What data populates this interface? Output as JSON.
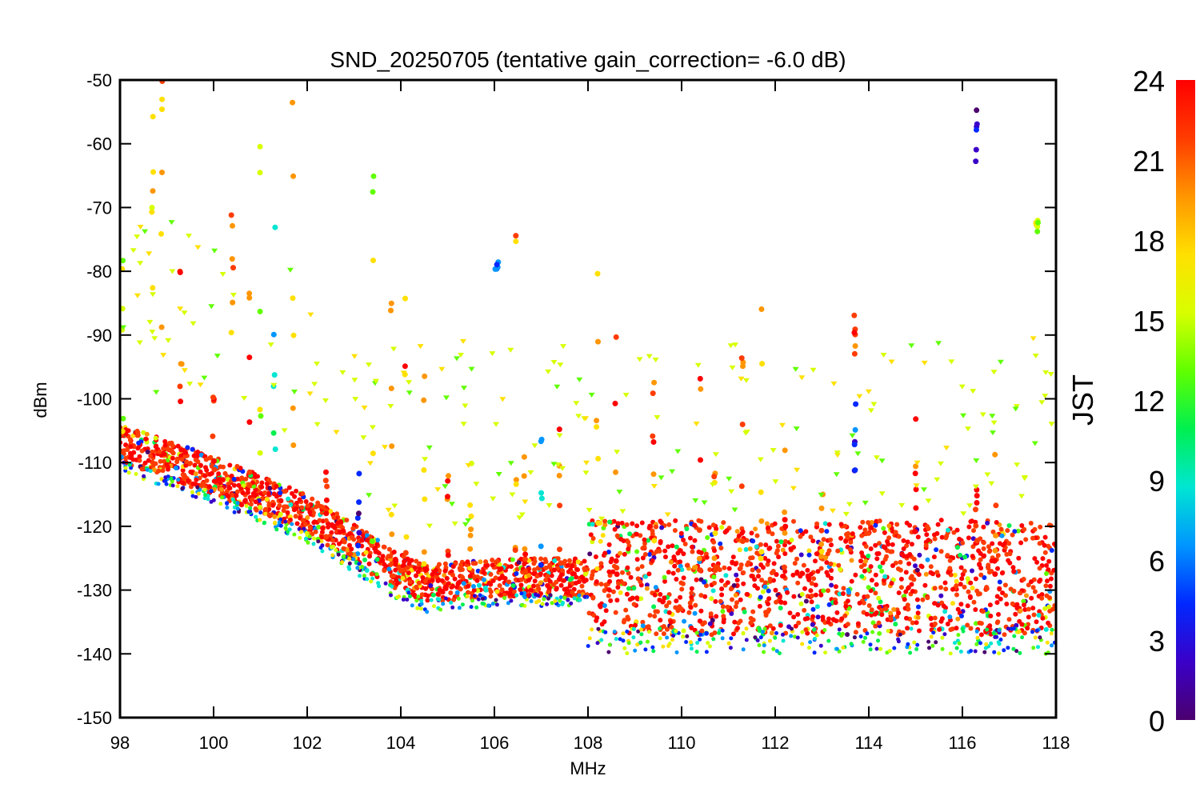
{
  "chart_data": {
    "type": "scatter",
    "title": "SND_20250705 (tentative gain_correction= -6.0 dB)",
    "xlabel": "MHz",
    "ylabel": "dBm",
    "xlim": [
      98,
      118
    ],
    "ylim": [
      -150,
      -50
    ],
    "x_ticks": [
      "98",
      "100",
      "102",
      "104",
      "106",
      "108",
      "110",
      "112",
      "114",
      "116",
      "118"
    ],
    "y_ticks": [
      "-50",
      "-60",
      "-70",
      "-80",
      "-90",
      "-100",
      "-110",
      "-120",
      "-130",
      "-140",
      "-150"
    ],
    "colorbar": {
      "label": "JST",
      "range": [
        0,
        24
      ],
      "ticks": [
        "0",
        "3",
        "6",
        "9",
        "12",
        "15",
        "18",
        "21",
        "24"
      ],
      "palette": [
        "#4b006e",
        "#3a00c8",
        "#0028ff",
        "#0096ff",
        "#00e6d2",
        "#00f050",
        "#60ff00",
        "#d8ff00",
        "#ffe000",
        "#ff9600",
        "#ff3c00",
        "#ff0000"
      ]
    },
    "noise_floor": [
      {
        "x": 98,
        "y": -107
      },
      {
        "x": 100,
        "y": -112
      },
      {
        "x": 102,
        "y": -118
      },
      {
        "x": 103.7,
        "y": -126
      },
      {
        "x": 104.5,
        "y": -129
      },
      {
        "x": 106,
        "y": -128
      },
      {
        "x": 107.5,
        "y": -128
      },
      {
        "x": 108,
        "y": -128
      },
      {
        "x": 118,
        "y": -128
      }
    ],
    "series": [
      {
        "name": "peak",
        "x": 98.05,
        "y_top": -78,
        "y_bottom": -107,
        "jst": 16
      },
      {
        "name": "peak",
        "x": 98.7,
        "y_top": -50,
        "y_bottom": -110,
        "jst": 17
      },
      {
        "name": "peak",
        "x": 98.9,
        "y_top": -50,
        "y_bottom": -110,
        "jst": 19
      },
      {
        "name": "peak",
        "x": 99.3,
        "y_top": -80,
        "y_bottom": -112,
        "jst": 22
      },
      {
        "name": "peak",
        "x": 100.0,
        "y_top": -98,
        "y_bottom": -114,
        "jst": 23
      },
      {
        "name": "peak",
        "x": 100.4,
        "y_top": -52,
        "y_bottom": -115,
        "jst": 21
      },
      {
        "name": "peak",
        "x": 100.75,
        "y_top": -78,
        "y_bottom": -116,
        "jst": 22
      },
      {
        "name": "peak",
        "x": 101.0,
        "y_top": -50,
        "y_bottom": -117,
        "jst": 14
      },
      {
        "name": "peak",
        "x": 101.3,
        "y_top": -54,
        "y_bottom": -117,
        "jst": 9
      },
      {
        "name": "peak",
        "x": 101.7,
        "y_top": -50,
        "y_bottom": -118,
        "jst": 18
      },
      {
        "name": "peak",
        "x": 102.4,
        "y_top": -110,
        "y_bottom": -122,
        "jst": 23
      },
      {
        "name": "peak",
        "x": 103.1,
        "y_top": -110,
        "y_bottom": -124,
        "jst": 3
      },
      {
        "name": "peak",
        "x": 103.4,
        "y_top": -63,
        "y_bottom": -125,
        "jst": 15
      },
      {
        "name": "peak",
        "x": 103.8,
        "y_top": -73,
        "y_bottom": -126,
        "jst": 20
      },
      {
        "name": "peak",
        "x": 104.1,
        "y_top": -73,
        "y_bottom": -128,
        "jst": 21
      },
      {
        "name": "peak",
        "x": 104.5,
        "y_top": -95,
        "y_bottom": -129,
        "jst": 20
      },
      {
        "name": "peak",
        "x": 105.0,
        "y_top": -110,
        "y_bottom": -128,
        "jst": 22
      },
      {
        "name": "peak",
        "x": 105.5,
        "y_top": -108,
        "y_bottom": -127,
        "jst": 18
      },
      {
        "name": "peak",
        "x": 106.05,
        "y_top": -78,
        "y_bottom": -80,
        "jst": 6
      },
      {
        "name": "peak",
        "x": 106.45,
        "y_top": -70,
        "y_bottom": -130,
        "jst": 20
      },
      {
        "name": "peak",
        "x": 106.65,
        "y_top": -103,
        "y_bottom": -129,
        "jst": 23
      },
      {
        "name": "peak",
        "x": 107.0,
        "y_top": -103,
        "y_bottom": -128,
        "jst": 8
      },
      {
        "name": "peak",
        "x": 107.4,
        "y_top": -103,
        "y_bottom": -128,
        "jst": 22
      },
      {
        "name": "peak",
        "x": 108.2,
        "y_top": -80,
        "y_bottom": -128,
        "jst": 19
      },
      {
        "name": "peak",
        "x": 108.6,
        "y_top": -90,
        "y_bottom": -128,
        "jst": 22
      },
      {
        "name": "peak",
        "x": 109.4,
        "y_top": -95,
        "y_bottom": -128,
        "jst": 21
      },
      {
        "name": "peak",
        "x": 110.4,
        "y_top": -93,
        "y_bottom": -128,
        "jst": 22
      },
      {
        "name": "peak",
        "x": 110.7,
        "y_top": -100,
        "y_bottom": -128,
        "jst": 20
      },
      {
        "name": "peak",
        "x": 111.3,
        "y_top": -85,
        "y_bottom": -128,
        "jst": 20
      },
      {
        "name": "peak",
        "x": 111.7,
        "y_top": -78,
        "y_bottom": -128,
        "jst": 19
      },
      {
        "name": "peak",
        "x": 112.2,
        "y_top": -98,
        "y_bottom": -128,
        "jst": 23
      },
      {
        "name": "peak",
        "x": 113.0,
        "y_top": -110,
        "y_bottom": -126,
        "jst": 20
      },
      {
        "name": "peak",
        "x": 113.7,
        "y_top": -85,
        "y_bottom": -93,
        "jst": 23
      },
      {
        "name": "peak",
        "x": 113.7,
        "y_top": -93,
        "y_bottom": -112,
        "jst": 4
      },
      {
        "name": "peak",
        "x": 115.0,
        "y_top": -103,
        "y_bottom": -128,
        "jst": 23
      },
      {
        "name": "peak",
        "x": 116.3,
        "y_top": -50,
        "y_bottom": -63,
        "jst": 4
      },
      {
        "name": "peak",
        "x": 116.3,
        "y_top": -114,
        "y_bottom": -128,
        "jst": 23
      },
      {
        "name": "peak",
        "x": 116.7,
        "y_top": -104,
        "y_bottom": -128,
        "jst": 21
      },
      {
        "name": "peak",
        "x": 117.6,
        "y_top": -72,
        "y_bottom": -74,
        "jst": 16
      }
    ]
  }
}
